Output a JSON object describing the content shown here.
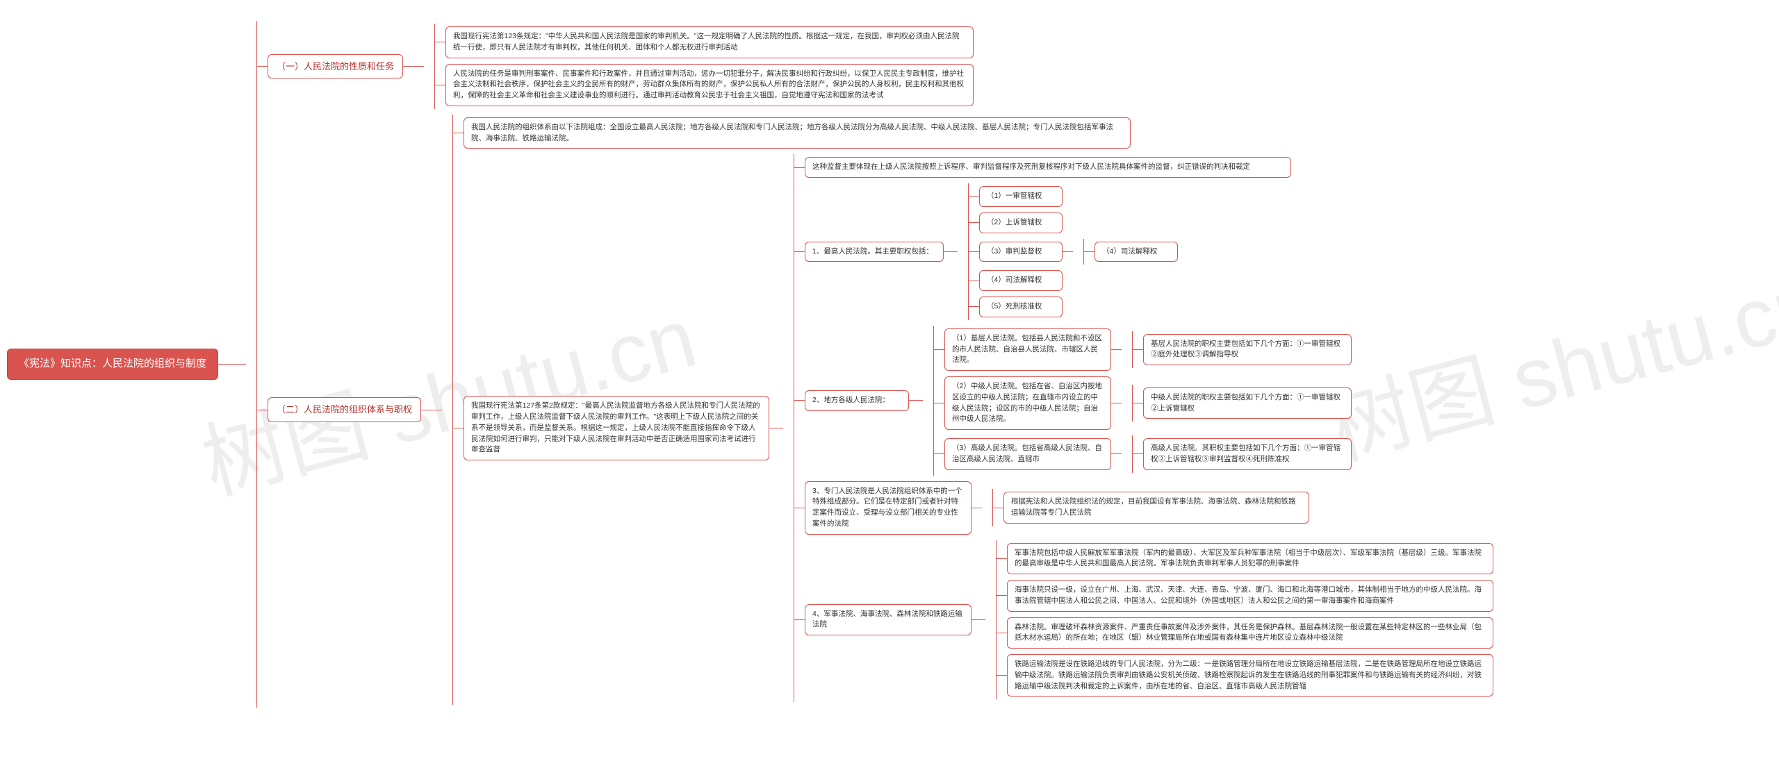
{
  "watermark": "树图 shutu.cn",
  "styling": {
    "root_bg": "#d9534f",
    "root_fg": "#ffffff",
    "node_border": "#d9534f",
    "node_fg_section": "#b52e2a",
    "node_fg_leaf": "#333333",
    "line_color": "#d9534f",
    "background": "#ffffff",
    "watermark_color": "#eeeeee",
    "root_fontsize": 15,
    "section_fontsize": 13,
    "leaf_fontsize": 10.5,
    "font_family": "Microsoft YaHei"
  },
  "root": "《宪法》知识点：人民法院的组织与制度",
  "s1": {
    "title": "（一）人民法院的性质和任务",
    "n1": "我国现行宪法第123条规定：\"中华人民共和国人民法院是国家的审判机关。\"这一规定明确了人民法院的性质。根据这一规定，在我国，审判权必须由人民法院统一行使，即只有人民法院才有审判权，其他任何机关、团体和个人都无权进行审判活动",
    "n2": "人民法院的任务是审判刑事案件、民事案件和行政案件，并且通过审判活动，惩办一切犯罪分子，解决民事纠纷和行政纠纷，以保卫人民民主专政制度，维护社会主义法制和社会秩序，保护社会主义的全民所有的财产，劳动群众集体所有的财产，保护公民私人所有的合法财产，保护公民的人身权利，民主权利和其他权利，保障的社会主义革命和社会主义建设事业的顺利进行。通过审判活动教育公民忠于社会主义祖国，自觉地遵守宪法和国家的法考试"
  },
  "s2": {
    "title": "（二）人民法院的组织体系与职权",
    "n1": "我国人民法院的组织体系由以下法院组成：全国设立最高人民法院；地方各级人民法院和专门人民法院；地方各级人民法院分为高级人民法院、中级人民法院、基层人民法院；专门人民法院包括军事法院、海事法院、铁路运输法院。",
    "n2": "我国现行宪法第127条第2款规定：\"最高人民法院监督地方各级人民法院和专门人民法院的审判工作，上级人民法院监督下级人民法院的审判工作。\"这表明上下级人民法院之间的关系不是领导关系，而是监督关系。根据这一规定，上级人民法院不能直接指挥命令下级人民法院如何进行审判，只能对下级人民法院在审判活动中是否正确适用国家司法考试进行审查监督",
    "n2_c1": "这种监督主要体现在上级人民法院按照上诉程序、审判监督程序及死刑复核程序对下级人民法院具体案件的监督，纠正错误的判决和裁定",
    "n2_c2": {
      "title": "1、最高人民法院。其主要职权包括：",
      "items": {
        "i1": "（1）一审管辖权",
        "i2": "（2）上诉管辖权",
        "i3": "（3）审判监督权",
        "i3_sub": "（4）司法解释权",
        "i4": "（4）司法解释权",
        "i5": "（5）死刑核准权"
      }
    },
    "n2_c3": {
      "title": "2、地方各级人民法院：",
      "r1": {
        "a": "（1）基层人民法院。包括县人民法院和不设区的市人民法院、自治县人民法院、市辖区人民法院。",
        "b": "基层人民法院的职权主要包括如下几个方面：①一审管辖权②庭外处理权③调解指导权"
      },
      "r2": {
        "a": "（2）中级人民法院。包括在省、自治区内按地区设立的中级人民法院；在直辖市内设立的中级人民法院；设区的市的中级人民法院；自治州中级人民法院。",
        "b": "中级人民法院的职权主要包括如下几个方面：①一审管辖权②上诉管辖权"
      },
      "r3": {
        "a": "（3）高级人民法院。包括省高级人民法院、自治区高级人民法院、直辖市",
        "b": "高级人民法院。其职权主要包括如下几个方面：①一审管辖权②上诉管辖权③审判监督权④死刑陈准权"
      }
    },
    "n2_c4": {
      "a": "3、专门人民法院是人民法院组织体系中的一个特殊组成部分。它们是在特定部门或者针对特定案件而设立、受理与设立部门相关的专业性案件的法院",
      "b": "根据宪法和人民法院组织法的规定，目前我国设有军事法院、海事法院、森林法院和铁路运输法院等专门人民法院"
    },
    "n2_c5": {
      "title": "4、军事法院、海事法院、森林法院和铁路运输法院",
      "i1": "军事法院包括中级人民解放军军事法院（军内的最高级）、大军区及军兵种军事法院（相当于中级层次）、军级军事法院（基层级）三级。军事法院的最高审级是中华人民共和国最高人民法院。军事法院负责审判军事人员犯罪的刑事案件",
      "i2": "海事法院只设一级，设立在广州、上海、武汉、天津、大连、青岛、宁波、厦门、海口和北海等港口城市，其体制相当于地方的中级人民法院。海事法院管辖中国法人和公民之间、中国法人、公民和境外（外国或地区）法人和公民之间的第一审海事案件和海商案件",
      "i3": "森林法院。审理破坏森林资源案件、严重责任事故案件及涉外案件，其任务是保护森林。基层森林法院一般设置在某些特定林区的一些林业局（包括木材水运局）的所在地；在地区（盟）林业管理局所在地或国有森林集中连片地区设立森林中级法院",
      "i4": "铁路运输法院是设在铁路沿线的专门人民法院，分为二级：一是铁路管理分局所在地设立铁路运输基层法院，二是在铁路管理局所在地设立铁路运输中级法院。铁路运输法院负责审判由铁路公安机关侦破、铁路检察院起诉的发生在铁路沿线的刑事犯罪案件和与铁路运输有关的经济纠纷，对铁路运输中级法院判决和裁定的上诉案件，由所在地的省、自治区、直辖市高级人民法院管辖"
    }
  }
}
